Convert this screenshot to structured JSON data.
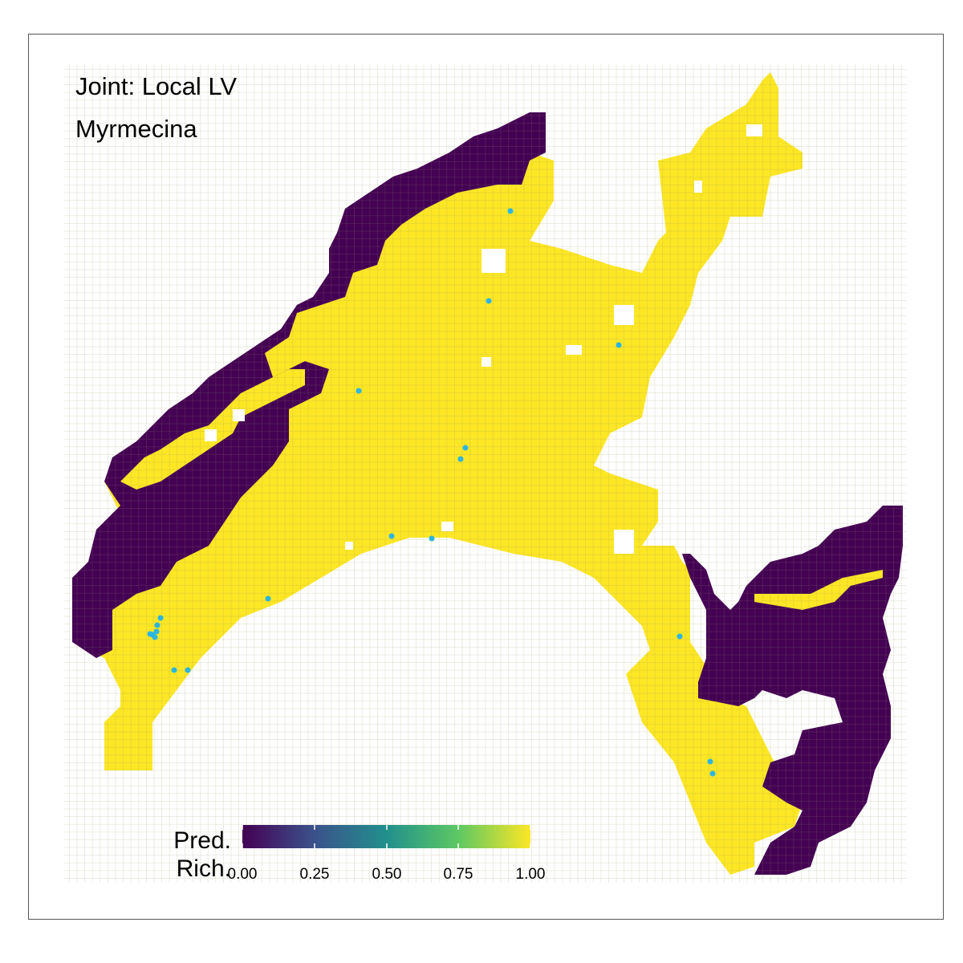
{
  "title": "Joint: Local LV",
  "subtitle": "Myrmecina",
  "legend": {
    "title_line1": "Pred.",
    "title_line2": "Rich.",
    "ticks": [
      "0.00",
      "0.25",
      "0.50",
      "0.75",
      "1.00"
    ],
    "tick_values": [
      0,
      0.25,
      0.5,
      0.75,
      1
    ],
    "gradient": [
      "#440154",
      "#3b528b",
      "#21908c",
      "#5dc863",
      "#fde725"
    ]
  },
  "colors": {
    "low": "#440154",
    "high": "#fde725",
    "grid_line": "#9a9a6a",
    "points": "#2bb5e0",
    "frame": "#555555"
  },
  "chart_data": {
    "type": "heatmap",
    "description_values": "Predicted richness per grid cell, values are either 0 (dark purple) or 1 (yellow)",
    "value_range": [
      0,
      1
    ],
    "observation_points_count": 20
  }
}
